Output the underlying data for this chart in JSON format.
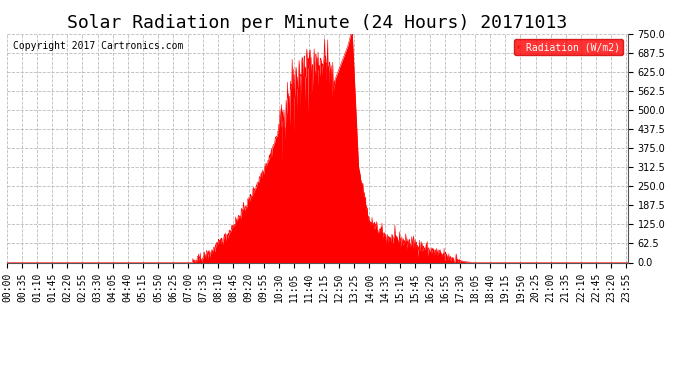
{
  "title": "Solar Radiation per Minute (24 Hours) 20171013",
  "copyright_text": "Copyright 2017 Cartronics.com",
  "bg_color": "#ffffff",
  "plot_bg_color": "#ffffff",
  "grid_color": "#bbbbbb",
  "fill_color": "#ff0000",
  "line_color": "#ff0000",
  "zero_line_color": "#ff0000",
  "ylim": [
    0.0,
    750.0
  ],
  "yticks": [
    0.0,
    62.5,
    125.0,
    187.5,
    250.0,
    312.5,
    375.0,
    437.5,
    500.0,
    562.5,
    625.0,
    687.5,
    750.0
  ],
  "legend_label": "Radiation (W/m2)",
  "legend_bg": "#ff0000",
  "legend_text_color": "#ffffff",
  "title_fontsize": 13,
  "tick_fontsize": 7,
  "copyright_fontsize": 7
}
